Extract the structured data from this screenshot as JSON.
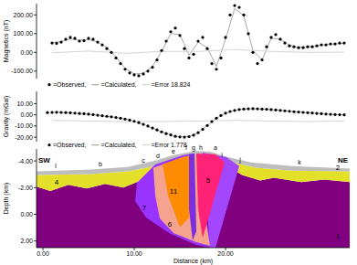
{
  "chart_data": [
    {
      "type": "scatter",
      "ylabel": "Magnetics (nT)",
      "tick_labels": "y",
      "xlim": [
        -0.7,
        33.6
      ],
      "ylim": [
        -140,
        260
      ],
      "yticks": [
        {
          "value": -100,
          "label": "-100.00"
        },
        {
          "value": 0,
          "label": "0.00"
        },
        {
          "value": 100,
          "label": "100.00"
        },
        {
          "value": 200,
          "label": "200.00"
        }
      ],
      "series": [
        {
          "name": "=Observed,",
          "type": "scatter",
          "marker": "circle",
          "color": "#000000",
          "x": [
            1.0,
            1.5,
            2.0,
            2.5,
            3.0,
            3.5,
            4.0,
            4.5,
            5.0,
            5.5,
            6.0,
            6.5,
            7.0,
            7.5,
            8.0,
            8.5,
            9.0,
            9.5,
            10.0,
            10.5,
            11.0,
            11.5,
            12.0,
            12.5,
            13.0,
            13.5,
            14.0,
            14.5,
            15.0,
            15.5,
            16.0,
            16.5,
            17.0,
            17.5,
            18.0,
            18.5,
            19.0,
            19.5,
            20.0,
            20.5,
            21.0,
            21.5,
            22.0,
            22.5,
            23.0,
            23.5,
            24.0,
            24.5,
            25.0,
            25.5,
            26.0,
            26.5,
            27.0,
            27.5,
            28.0,
            28.5,
            29.0,
            29.5,
            30.0,
            30.5,
            31.0,
            31.5,
            32.0,
            32.5,
            33.0
          ],
          "values": [
            50,
            48,
            55,
            70,
            80,
            75,
            60,
            62,
            75,
            70,
            55,
            40,
            20,
            0,
            -30,
            -60,
            -90,
            -110,
            -120,
            -125,
            -115,
            -100,
            -80,
            -40,
            10,
            60,
            110,
            130,
            90,
            20,
            -30,
            -10,
            60,
            80,
            20,
            -60,
            -90,
            -30,
            80,
            200,
            250,
            240,
            200,
            100,
            0,
            -60,
            -40,
            30,
            80,
            95,
            70,
            50,
            35,
            30,
            25,
            25,
            30,
            30,
            35,
            40,
            40,
            45,
            45,
            50,
            50
          ]
        },
        {
          "name": "=Calculated,",
          "type": "line",
          "line_style": "solid",
          "color": "#a8a8a8",
          "x": [
            1,
            2,
            3,
            4,
            5,
            6,
            7,
            8,
            9,
            10,
            11,
            12,
            13,
            14,
            15,
            16,
            17,
            18,
            19,
            20,
            21,
            22,
            23,
            24,
            25,
            26,
            27,
            28,
            29,
            30,
            31,
            32,
            33
          ],
          "values": [
            52,
            58,
            72,
            65,
            68,
            55,
            25,
            -25,
            -85,
            -115,
            -112,
            -75,
            5,
            100,
            95,
            -15,
            55,
            25,
            -75,
            70,
            235,
            195,
            10,
            -40,
            75,
            70,
            38,
            27,
            30,
            36,
            41,
            45,
            49
          ]
        },
        {
          "name": "=Error 18.824",
          "type": "line",
          "line_style": "solid",
          "color": "#d4d4d4",
          "x": [
            1,
            5,
            9,
            13,
            17,
            21,
            25,
            29,
            33
          ],
          "values": [
            -2,
            7,
            -5,
            5,
            5,
            15,
            5,
            0,
            1
          ]
        }
      ]
    },
    {
      "type": "scatter",
      "ylabel": "Gravity (mGal)",
      "tick_labels": "y",
      "xlim": [
        -0.7,
        33.6
      ],
      "ylim": [
        -24,
        21
      ],
      "yticks": [
        {
          "value": -20,
          "label": "-20.00"
        },
        {
          "value": -10,
          "label": "-10.00"
        },
        {
          "value": 0,
          "label": "0.00"
        },
        {
          "value": 10,
          "label": "10.00"
        }
      ],
      "series": [
        {
          "name": "=Observed,",
          "type": "scatter",
          "marker": "circle",
          "color": "#000000",
          "x": [
            0.5,
            1.0,
            1.5,
            2.0,
            2.5,
            3.0,
            3.5,
            4.0,
            4.5,
            5.0,
            5.5,
            6.0,
            6.5,
            7.0,
            7.5,
            8.0,
            8.5,
            9.0,
            9.5,
            10.0,
            10.5,
            11.0,
            11.5,
            12.0,
            12.5,
            13.0,
            13.5,
            14.0,
            14.5,
            15.0,
            15.5,
            16.0,
            16.5,
            17.0,
            17.5,
            18.0,
            18.5,
            19.0,
            19.5,
            20.0,
            20.5,
            21.0,
            21.5,
            22.0,
            22.5,
            23.0,
            23.5,
            24.0,
            24.5,
            25.0,
            25.5,
            26.0,
            26.5,
            27.0,
            27.5,
            28.0,
            28.5,
            29.0,
            29.5,
            30.0,
            30.5,
            31.0,
            31.5,
            32.0,
            32.5,
            33.0
          ],
          "values": [
            2.0,
            2.2,
            2.3,
            2.2,
            2.0,
            1.8,
            1.5,
            1.2,
            1.0,
            0.6,
            0.2,
            -0.3,
            -0.8,
            -1.3,
            -1.8,
            -2.4,
            -3.0,
            -3.8,
            -4.7,
            -5.8,
            -7.0,
            -8.5,
            -10.0,
            -11.8,
            -13.5,
            -15.2,
            -16.8,
            -18.0,
            -19.2,
            -19.8,
            -20.0,
            -19.5,
            -18.2,
            -16.0,
            -13.0,
            -9.5,
            -6.0,
            -3.0,
            -0.5,
            1.5,
            3.0,
            4.0,
            4.8,
            5.2,
            5.4,
            5.5,
            5.4,
            5.2,
            5.0,
            4.7,
            4.4,
            4.0,
            3.6,
            3.2,
            2.8,
            2.5,
            2.2,
            1.9,
            1.6,
            1.3,
            1.0,
            0.7,
            0.5,
            0.3,
            0.1,
            0.0
          ]
        },
        {
          "name": "=Calculated,",
          "type": "line",
          "line_style": "solid",
          "color": "#a8a8a8",
          "x": [
            1,
            2,
            3,
            4,
            5,
            6,
            7,
            8,
            9,
            10,
            11,
            12,
            13,
            14,
            15,
            16,
            17,
            18,
            19,
            20,
            21,
            22,
            23,
            24,
            25,
            26,
            27,
            28,
            29,
            30,
            31,
            32,
            33
          ],
          "values": [
            2.2,
            2.2,
            1.8,
            1.2,
            0.6,
            -0.3,
            -1.3,
            -2.4,
            -3.8,
            -5.8,
            -8.5,
            -11.8,
            -15.2,
            -18.0,
            -19.8,
            -19.5,
            -16.0,
            -9.5,
            -3.0,
            1.5,
            4.0,
            5.2,
            5.5,
            5.2,
            4.7,
            4.0,
            3.2,
            2.5,
            1.9,
            1.3,
            0.7,
            0.3,
            0.0
          ]
        },
        {
          "name": "=Error 1.778",
          "type": "line",
          "line_style": "solid",
          "color": "#d4d4d4",
          "x": [
            1,
            5,
            9,
            13,
            17,
            21,
            25,
            29,
            33
          ],
          "values": [
            -5,
            -5.5,
            -6,
            -6,
            -5.5,
            -5,
            -5.5,
            -6,
            -5.5
          ]
        }
      ]
    },
    {
      "type": "section",
      "xlabel": "Distance (km)",
      "ylabel": "Depth (km)",
      "tick_labels": true,
      "xlim": [
        -0.7,
        33.6
      ],
      "ylim": [
        -4.9,
        2.5
      ],
      "xticks": [
        {
          "value": 0,
          "label": "0.00"
        },
        {
          "value": 10,
          "label": "10.00"
        },
        {
          "value": 20,
          "label": "20.00"
        }
      ],
      "yticks": [
        {
          "value": -4,
          "label": "-4.00"
        },
        {
          "value": -2,
          "label": "-2.00"
        },
        {
          "value": 0,
          "label": "0.00"
        },
        {
          "value": 2,
          "label": "2.00"
        }
      ],
      "ends": [
        "SW",
        "NE"
      ],
      "basement": {
        "label": "1",
        "color": "#800080",
        "label_x": 32.3,
        "label_depth": 1.8,
        "top": {
          "x": [
            -0.7,
            0.8,
            2.8,
            4.8,
            6.8,
            8.8,
            10.3,
            12.3,
            14.3,
            20.3,
            21.8,
            23.8,
            25.3,
            28.3,
            30.8,
            33.6
          ],
          "depth": [
            -2.07,
            -1.74,
            -2.21,
            -1.94,
            -2.28,
            -2.01,
            -2.41,
            -3.08,
            -3.62,
            -3.62,
            -2.95,
            -2.54,
            -2.75,
            -2.41,
            -2.61,
            -2.41
          ]
        }
      },
      "layers": [
        {
          "label": "4",
          "color": "#e4e02a",
          "label_x": 1.5,
          "label_depth": -2.2,
          "top": {
            "x": [
              -0.7,
              5.3,
              9.3,
              12.3,
              14.3,
              16.8,
              18.8,
              20.8,
              23.3,
              27.3,
              33.6
            ],
            "depth": [
              -2.95,
              -3.02,
              -3.22,
              -3.62,
              -3.96,
              -4.29,
              -4.29,
              -3.89,
              -3.49,
              -3.28,
              -3.22
            ]
          },
          "bottom": {
            "x": [
              -0.7,
              0.8,
              2.8,
              4.8,
              6.8,
              8.8,
              10.3,
              12.3,
              14.3,
              20.3,
              21.8,
              23.8,
              25.3,
              28.3,
              30.8,
              33.6
            ],
            "depth": [
              -2.07,
              -1.74,
              -2.21,
              -1.94,
              -2.28,
              -2.01,
              -2.41,
              -3.08,
              -3.62,
              -3.62,
              -2.95,
              -2.54,
              -2.75,
              -2.41,
              -2.61,
              -2.41
            ]
          }
        },
        {
          "label": "2",
          "color": "#bdbdbd",
          "label_x": 32.3,
          "label_depth": -3.3,
          "top": {
            "x": [
              -0.7,
              5.3,
              9.3,
              12.3,
              14.3,
              16.8,
              18.3,
              20.3,
              22.8,
              27.3,
              33.6
            ],
            "depth": [
              -3.22,
              -3.35,
              -3.55,
              -4.03,
              -4.43,
              -4.77,
              -4.7,
              -4.29,
              -3.89,
              -3.62,
              -3.42
            ]
          },
          "bottom": {
            "x": [
              -0.7,
              5.3,
              9.3,
              12.3,
              14.3,
              16.8,
              18.8,
              20.8,
              23.3,
              27.3,
              33.6
            ],
            "depth": [
              -2.95,
              -3.02,
              -3.22,
              -3.62,
              -3.96,
              -4.29,
              -4.29,
              -3.89,
              -3.49,
              -3.28,
              -3.22
            ]
          }
        }
      ],
      "bodies": [
        {
          "label": "7",
          "color": "#9933ff",
          "label_x": 11.1,
          "label_depth": -0.31,
          "x": [
            10.3,
            12.3,
            15.3,
            16.5,
            18.5,
            16.8,
            13.8,
            11.3,
            10.1
          ],
          "depth": [
            -2.36,
            -3.73,
            -4.42,
            -4.56,
            2.5,
            2.3,
            1.41,
            0.24,
            -0.99
          ]
        },
        {
          "color": "#a347ff",
          "x": [
            17.5,
            20.1,
            21.5,
            18.9,
            18.3
          ],
          "depth": [
            -4.63,
            -4.29,
            -3.62,
            2.5,
            2.5
          ]
        },
        {
          "label": "6",
          "color": "#f5a38e",
          "label_x": 13.9,
          "label_depth": 0.93,
          "x": [
            12.1,
            15.3,
            16.7,
            18.3,
            16.8,
            14.3,
            12.8,
            12.3
          ],
          "depth": [
            -3.47,
            -4.29,
            -4.43,
            2.37,
            2.09,
            1.41,
            0.31,
            -1.4
          ]
        },
        {
          "label": "11",
          "color": "#ff8c00",
          "label_x": 14.3,
          "label_depth": -1.54,
          "x": [
            13.1,
            15.3,
            16.3,
            16.0,
            15.0,
            13.7
          ],
          "depth": [
            -3.76,
            -4.29,
            -4.43,
            0.28,
            0.95,
            -1.4
          ]
        },
        {
          "color": "#7b2fe0",
          "x": [
            16.0,
            16.6,
            16.8,
            16.4,
            16.0
          ],
          "depth": [
            -4.5,
            -4.56,
            1.29,
            1.96,
            -0.39
          ]
        },
        {
          "label": "5",
          "color": "#ff2277",
          "label_x": 18.1,
          "label_depth": -2.36,
          "x": [
            16.8,
            18.9,
            19.9,
            17.5,
            17.0
          ],
          "depth": [
            -4.56,
            -4.5,
            -3.89,
            1.76,
            -0.39
          ]
        }
      ],
      "letters": [
        {
          "text": "l",
          "x": 1.4,
          "depth": -3.45
        },
        {
          "text": "b",
          "x": 6.3,
          "depth": -3.6
        },
        {
          "text": "c",
          "x": 11.0,
          "depth": -3.9
        },
        {
          "text": "d",
          "x": 12.6,
          "depth": -4.2
        },
        {
          "text": "e",
          "x": 14.3,
          "depth": -4.55
        },
        {
          "text": "f",
          "x": 15.7,
          "depth": -4.85
        },
        {
          "text": "g",
          "x": 16.5,
          "depth": -4.85
        },
        {
          "text": "h",
          "x": 17.3,
          "depth": -4.85
        },
        {
          "text": "a",
          "x": 18.9,
          "depth": -4.8
        },
        {
          "text": "i",
          "x": 19.6,
          "depth": -4.3
        },
        {
          "text": "j",
          "x": 21.6,
          "depth": -3.95
        },
        {
          "text": "k",
          "x": 28.1,
          "depth": -3.75
        }
      ]
    }
  ]
}
